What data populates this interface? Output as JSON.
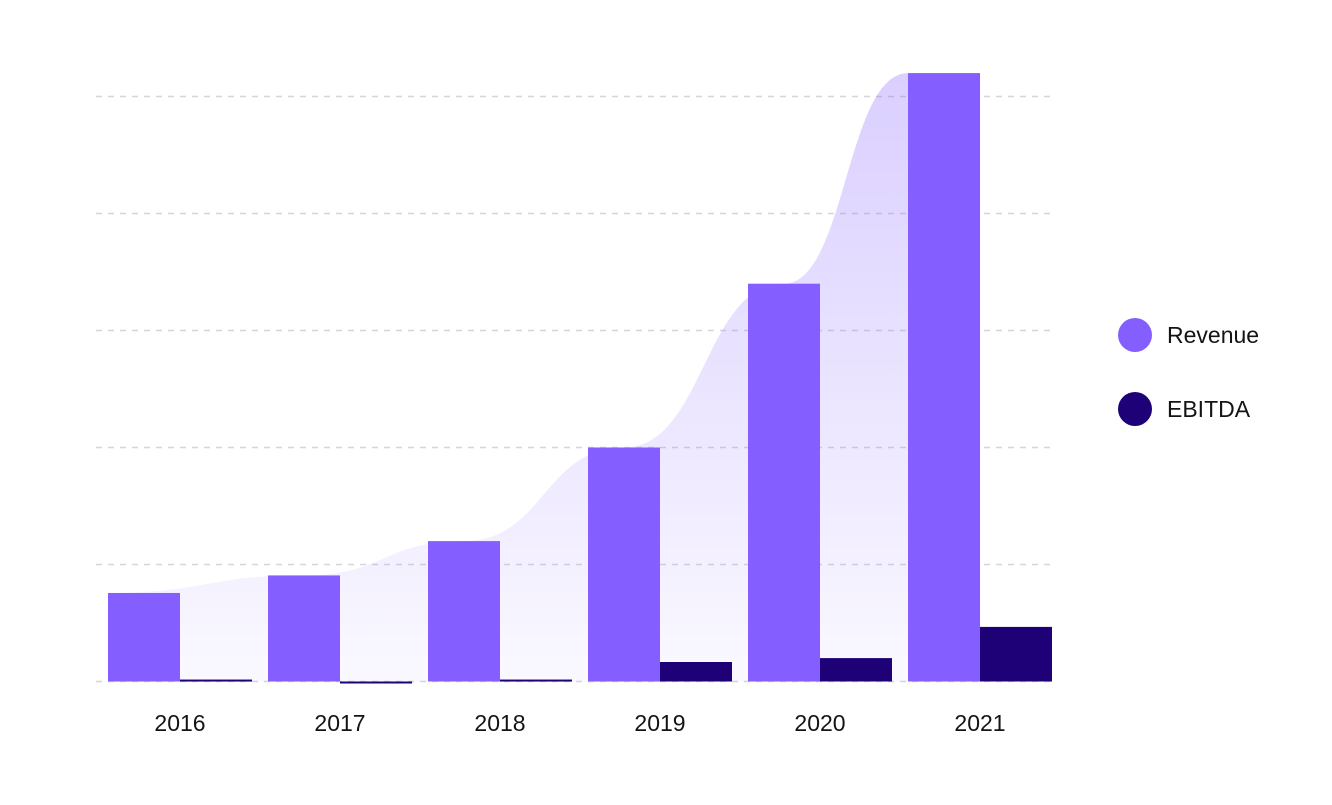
{
  "chart_data": {
    "type": "bar",
    "title": "",
    "xlabel": "",
    "ylabel": "",
    "categories": [
      "2016",
      "2017",
      "2018",
      "2019",
      "2020",
      "2021"
    ],
    "ylim": [
      -0.3,
      15
    ],
    "y_gridlines": [
      0,
      3,
      6,
      9,
      12,
      15
    ],
    "grid": true,
    "y_tick_labels_shown": false,
    "legend_position": "right",
    "series": [
      {
        "name": "Revenue",
        "color": "#845EFE",
        "values": [
          2.27,
          2.72,
          3.6,
          6.0,
          10.2,
          15.6
        ]
      },
      {
        "name": "EBITDA",
        "color": "#1E0077",
        "values": [
          0.05,
          -0.03,
          0.05,
          0.5,
          0.6,
          1.4
        ]
      }
    ],
    "trend_area": {
      "follows_series": "Revenue",
      "color": "#845EFE"
    }
  }
}
